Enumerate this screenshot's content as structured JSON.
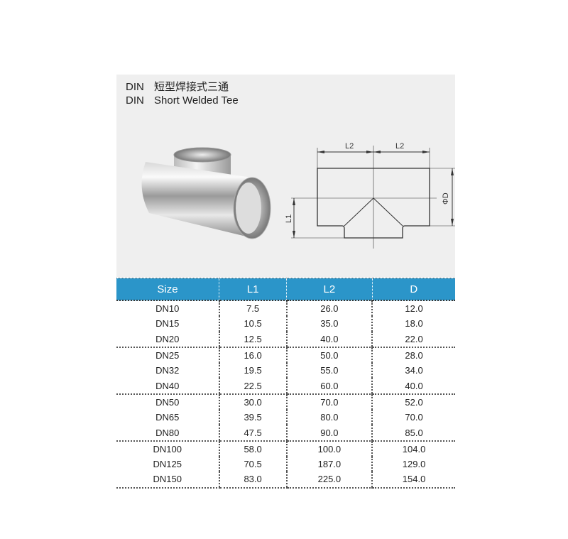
{
  "title": {
    "prefix_cn": "DIN",
    "name_cn": "短型焊接式三通",
    "prefix_en": "DIN",
    "name_en": "Short Welded Tee"
  },
  "diagram": {
    "labels": {
      "l2_left": "L2",
      "l2_right": "L2",
      "l1": "L1",
      "d": "ΦD"
    }
  },
  "table": {
    "headers": [
      "Size",
      "L1",
      "L2",
      "D"
    ],
    "groups": [
      [
        [
          "DN10",
          "7.5",
          "26.0",
          "12.0"
        ],
        [
          "DN15",
          "10.5",
          "35.0",
          "18.0"
        ],
        [
          "DN20",
          "12.5",
          "40.0",
          "22.0"
        ]
      ],
      [
        [
          "DN25",
          "16.0",
          "50.0",
          "28.0"
        ],
        [
          "DN32",
          "19.5",
          "55.0",
          "34.0"
        ],
        [
          "DN40",
          "22.5",
          "60.0",
          "40.0"
        ]
      ],
      [
        [
          "DN50",
          "30.0",
          "70.0",
          "52.0"
        ],
        [
          "DN65",
          "39.5",
          "80.0",
          "70.0"
        ],
        [
          "DN80",
          "47.5",
          "90.0",
          "85.0"
        ]
      ],
      [
        [
          "DN100",
          "58.0",
          "100.0",
          "104.0"
        ],
        [
          "DN125",
          "70.5",
          "187.0",
          "129.0"
        ],
        [
          "DN150",
          "83.0",
          "225.0",
          "154.0"
        ]
      ]
    ]
  },
  "colors": {
    "header": "#2b95c9",
    "panel": "#efefef"
  }
}
